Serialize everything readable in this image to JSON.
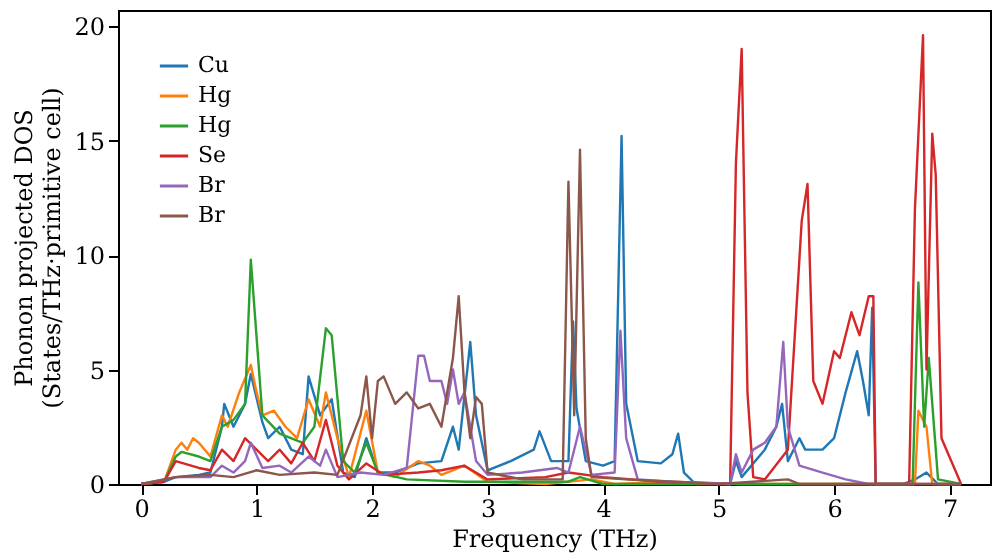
{
  "chart_data": {
    "type": "line",
    "xlabel": "Frequency (THz)",
    "ylabel": "Phonon projected DOS\n(States/THz·primitive cell)",
    "xlim": [
      -0.2,
      7.35
    ],
    "ylim": [
      0,
      20.7
    ],
    "xticks": [
      0,
      1,
      2,
      3,
      4,
      5,
      6,
      7
    ],
    "yticks": [
      0,
      5,
      10,
      15,
      20
    ],
    "grid": false,
    "legend": "top left",
    "line_style": "solid",
    "marker": "none",
    "series": [
      {
        "name": "Cu",
        "color": "#1f77b4",
        "x": [
          0,
          0.2,
          0.3,
          0.5,
          0.6,
          0.7,
          0.72,
          0.8,
          0.9,
          0.95,
          1.05,
          1.1,
          1.2,
          1.3,
          1.4,
          1.45,
          1.55,
          1.65,
          1.75,
          1.85,
          1.95,
          2.05,
          2.2,
          2.4,
          2.6,
          2.7,
          2.75,
          2.85,
          2.9,
          3.0,
          3.2,
          3.4,
          3.45,
          3.55,
          3.7,
          3.74,
          3.77,
          3.85,
          4.0,
          4.1,
          4.16,
          4.2,
          4.3,
          4.5,
          4.6,
          4.65,
          4.7,
          4.8,
          5.1,
          5.15,
          5.2,
          5.4,
          5.5,
          5.55,
          5.6,
          5.7,
          5.75,
          5.9,
          6.0,
          6.1,
          6.2,
          6.25,
          6.3,
          6.33,
          6.36,
          6.6,
          6.7,
          6.8,
          6.9,
          7.1
        ],
        "values": [
          0,
          0.1,
          0.3,
          0.4,
          0.5,
          2.5,
          3.5,
          2.5,
          3.5,
          4.8,
          2.7,
          2.0,
          2.5,
          1.5,
          1.3,
          4.7,
          3.0,
          3.7,
          0.5,
          0.3,
          2.0,
          0.5,
          0.5,
          0.9,
          1.0,
          2.5,
          1.5,
          6.2,
          3.0,
          0.6,
          1.0,
          1.5,
          2.3,
          1.0,
          1.0,
          7.1,
          3.3,
          1.0,
          0.8,
          1.0,
          15.2,
          3.5,
          1.0,
          0.9,
          1.3,
          2.2,
          0.5,
          0,
          0,
          1.0,
          0.3,
          1.5,
          2.5,
          3.5,
          1.0,
          2.0,
          1.5,
          1.5,
          2.0,
          4.0,
          5.8,
          4.5,
          3.0,
          7.7,
          0,
          0,
          0.2,
          0.5,
          0,
          0
        ]
      },
      {
        "name": "Hg",
        "color": "#ff7f0e",
        "x": [
          0,
          0.2,
          0.3,
          0.35,
          0.4,
          0.45,
          0.5,
          0.6,
          0.7,
          0.75,
          0.85,
          0.95,
          1.0,
          1.05,
          1.15,
          1.25,
          1.35,
          1.45,
          1.55,
          1.6,
          1.7,
          1.8,
          1.95,
          2.05,
          2.2,
          2.4,
          2.5,
          2.6,
          2.8,
          3.0,
          3.5,
          3.9,
          4.1,
          4.6,
          5.2,
          6.7,
          6.73,
          6.8,
          6.85,
          7.1
        ],
        "values": [
          0,
          0.1,
          1.5,
          1.8,
          1.5,
          2.0,
          1.8,
          1.2,
          3.0,
          2.5,
          4.0,
          5.2,
          4.0,
          3.0,
          3.2,
          2.5,
          2.0,
          3.7,
          2.5,
          4.0,
          2.0,
          0.3,
          3.2,
          0.5,
          0.3,
          1.0,
          0.8,
          0.4,
          0.8,
          0.1,
          0,
          0.2,
          0,
          0.1,
          0,
          0,
          3.2,
          2.5,
          0,
          0
        ]
      },
      {
        "name": "Hg",
        "color": "#2ca02c",
        "x": [
          0,
          0.2,
          0.3,
          0.35,
          0.5,
          0.6,
          0.7,
          0.8,
          0.9,
          0.95,
          1.05,
          1.2,
          1.4,
          1.5,
          1.6,
          1.65,
          1.75,
          1.85,
          1.95,
          2.05,
          2.3,
          2.8,
          3.7,
          3.8,
          4.0,
          6.68,
          6.73,
          6.78,
          6.82,
          6.9,
          7.1
        ],
        "values": [
          0,
          0.1,
          1.2,
          1.4,
          1.2,
          1.0,
          2.5,
          2.8,
          3.5,
          9.8,
          3.0,
          2.2,
          1.8,
          2.5,
          6.8,
          6.5,
          1.0,
          0.5,
          1.8,
          0.5,
          0.2,
          0.1,
          0.1,
          0.3,
          0,
          0,
          8.8,
          2.5,
          5.5,
          0.2,
          0
        ]
      },
      {
        "name": "Se",
        "color": "#d62728",
        "x": [
          0,
          0.2,
          0.3,
          0.5,
          0.6,
          0.7,
          0.8,
          0.9,
          1.0,
          1.1,
          1.2,
          1.3,
          1.4,
          1.5,
          1.6,
          1.7,
          1.8,
          1.95,
          2.1,
          2.4,
          2.6,
          2.8,
          3.0,
          3.5,
          3.7,
          4.0,
          4.5,
          5.1,
          5.15,
          5.2,
          5.25,
          5.3,
          5.4,
          5.6,
          5.72,
          5.77,
          5.82,
          5.9,
          6.0,
          6.05,
          6.15,
          6.22,
          6.3,
          6.34,
          6.36,
          6.65,
          6.7,
          6.77,
          6.8,
          6.85,
          6.88,
          6.93,
          7.1
        ],
        "values": [
          0,
          0.1,
          1.0,
          0.7,
          0.6,
          1.5,
          1.0,
          2.0,
          1.5,
          1.0,
          1.5,
          0.9,
          1.8,
          1.0,
          2.8,
          0.8,
          0.2,
          0.9,
          0.4,
          0.5,
          0.6,
          0.8,
          0.2,
          0.3,
          0.5,
          0.3,
          0.1,
          0,
          14.0,
          19.0,
          4.0,
          0.3,
          0.2,
          1.5,
          11.5,
          13.1,
          4.5,
          3.5,
          5.8,
          5.5,
          7.5,
          6.5,
          8.2,
          8.2,
          0,
          0,
          12.0,
          19.6,
          5.0,
          15.3,
          13.5,
          2.0,
          0
        ]
      },
      {
        "name": "Br",
        "color": "#9467bd",
        "x": [
          0,
          0.3,
          0.6,
          0.7,
          0.8,
          0.9,
          0.95,
          1.05,
          1.2,
          1.3,
          1.45,
          1.55,
          1.6,
          1.7,
          1.9,
          2.1,
          2.3,
          2.4,
          2.45,
          2.5,
          2.6,
          2.65,
          2.7,
          2.75,
          2.8,
          2.9,
          3.0,
          3.3,
          3.6,
          3.7,
          3.8,
          3.9,
          4.1,
          4.15,
          4.2,
          4.3,
          4.6,
          5.1,
          5.15,
          5.2,
          5.3,
          5.4,
          5.5,
          5.56,
          5.6,
          5.7,
          5.9,
          6.1,
          6.3,
          7.1
        ],
        "values": [
          0,
          0.3,
          0.3,
          0.8,
          0.5,
          1.0,
          1.8,
          0.7,
          0.8,
          0.5,
          1.2,
          0.8,
          1.5,
          0.3,
          0.5,
          0.4,
          0.7,
          5.6,
          5.6,
          4.5,
          4.5,
          3.5,
          5.0,
          3.5,
          4.0,
          1.0,
          0.4,
          0.5,
          0.7,
          0.5,
          2.5,
          0.4,
          0.5,
          6.7,
          2.0,
          0.2,
          0.1,
          0,
          1.3,
          0.5,
          1.5,
          1.8,
          2.5,
          6.2,
          2.5,
          0.8,
          0.5,
          0.2,
          0,
          0
        ]
      },
      {
        "name": "Br",
        "color": "#8c564b",
        "x": [
          0,
          0.3,
          0.6,
          0.8,
          1.0,
          1.2,
          1.5,
          1.7,
          1.9,
          1.95,
          2.0,
          2.05,
          2.1,
          2.2,
          2.3,
          2.4,
          2.5,
          2.6,
          2.7,
          2.75,
          2.8,
          2.85,
          2.9,
          2.95,
          3.0,
          3.3,
          3.65,
          3.7,
          3.75,
          3.8,
          3.85,
          3.9,
          4.2,
          4.6,
          5.0,
          5.6,
          5.7,
          7.1
        ],
        "values": [
          0,
          0.3,
          0.4,
          0.3,
          0.6,
          0.4,
          0.5,
          0.4,
          3.0,
          4.7,
          2.0,
          4.5,
          4.7,
          3.5,
          4.0,
          3.3,
          3.5,
          2.5,
          5.5,
          8.2,
          4.0,
          2.0,
          3.8,
          3.5,
          0.5,
          0.2,
          0.2,
          13.2,
          3.0,
          14.6,
          2.0,
          0.3,
          0.2,
          0.1,
          0,
          0.2,
          0,
          0
        ]
      }
    ]
  }
}
